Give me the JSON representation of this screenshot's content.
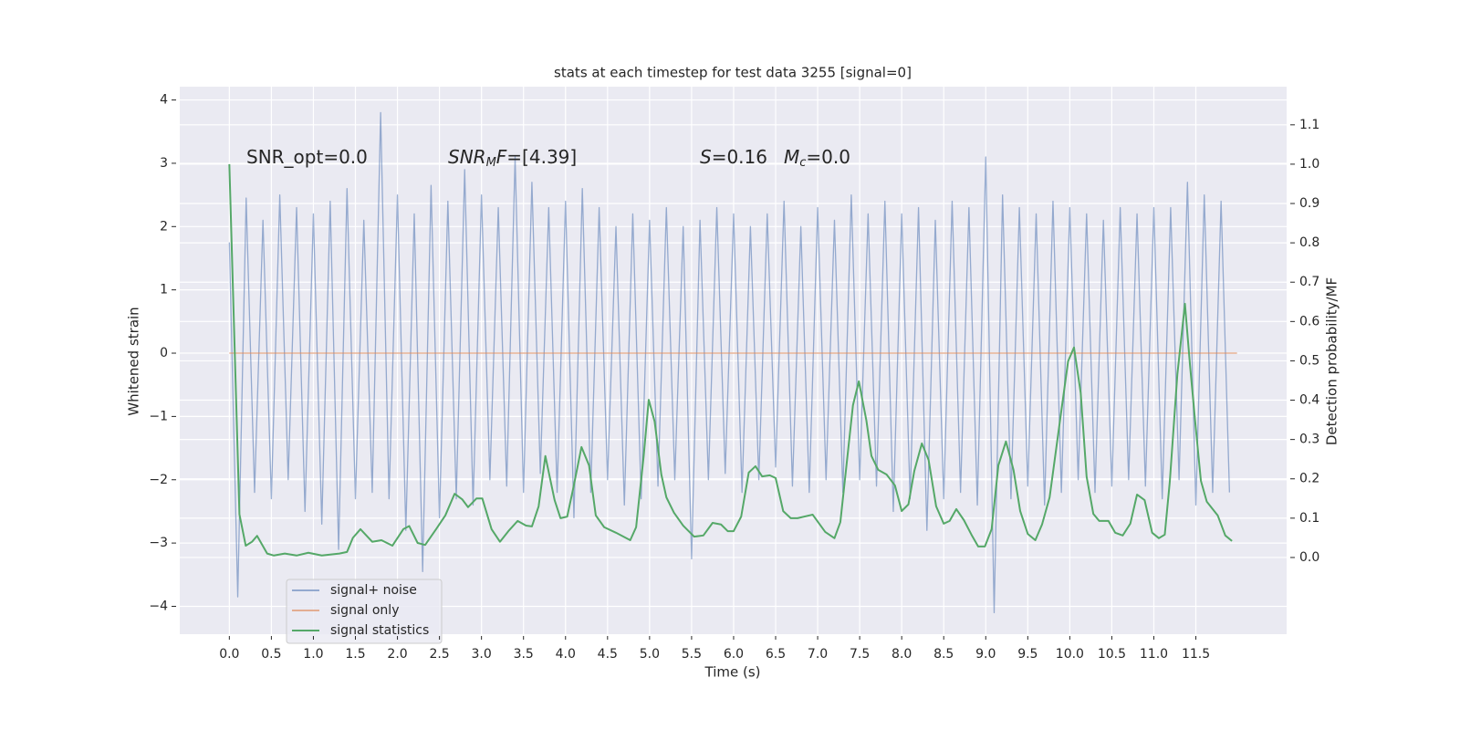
{
  "chart_data": {
    "type": "line",
    "title": "stats at each timestep for test data 3255 [signal=0]",
    "xlabel": "Time (s)",
    "ylabel": "Whitened strain",
    "y2label": "Detection probability/MF",
    "annotations": [
      [
        "SNR_opt=0.0"
      ],
      [
        "SNR",
        "M",
        "F",
        "=[4.39]"
      ],
      [
        "S",
        "=0.16"
      ],
      [
        "M",
        "c",
        "=0.0"
      ]
    ],
    "xlim": [
      -0.59,
      12.58
    ],
    "ylim": [
      -4.44,
      4.21
    ],
    "y2lim": [
      -0.195,
      1.197
    ],
    "xticks": [
      {
        "value": 0,
        "label": "0.0"
      },
      {
        "value": 0.5,
        "label": "0.5"
      },
      {
        "value": 1,
        "label": "1.0"
      },
      {
        "value": 1.5,
        "label": "1.5"
      },
      {
        "value": 2,
        "label": "2.0"
      },
      {
        "value": 2.5,
        "label": "2.5"
      },
      {
        "value": 3,
        "label": "3.0"
      },
      {
        "value": 3.5,
        "label": "3.5"
      },
      {
        "value": 4,
        "label": "4.0"
      },
      {
        "value": 4.5,
        "label": "4.5"
      },
      {
        "value": 5,
        "label": "5.0"
      },
      {
        "value": 5.5,
        "label": "5.5"
      },
      {
        "value": 6,
        "label": "6.0"
      },
      {
        "value": 6.5,
        "label": "6.5"
      },
      {
        "value": 7,
        "label": "7.0"
      },
      {
        "value": 7.5,
        "label": "7.5"
      },
      {
        "value": 8,
        "label": "8.0"
      },
      {
        "value": 8.5,
        "label": "8.5"
      },
      {
        "value": 9,
        "label": "9.0"
      },
      {
        "value": 9.5,
        "label": "9.5"
      },
      {
        "value": 10,
        "label": "10.0"
      },
      {
        "value": 10.5,
        "label": "10.5"
      },
      {
        "value": 11,
        "label": "11.0"
      },
      {
        "value": 11.5,
        "label": "11.5"
      }
    ],
    "yticks": [
      {
        "value": -4,
        "label": "−4"
      },
      {
        "value": -3,
        "label": "−3"
      },
      {
        "value": -2,
        "label": "−2"
      },
      {
        "value": -1,
        "label": "−1"
      },
      0,
      1,
      2,
      3,
      4
    ],
    "y2ticks": [
      {
        "value": 0,
        "label": "0.0"
      },
      {
        "value": 0.1,
        "label": "0.1"
      },
      {
        "value": 0.2,
        "label": "0.2"
      },
      {
        "value": 0.3,
        "label": "0.3"
      },
      {
        "value": 0.4,
        "label": "0.4"
      },
      {
        "value": 0.5,
        "label": "0.5"
      },
      {
        "value": 0.6,
        "label": "0.6"
      },
      {
        "value": 0.7,
        "label": "0.7"
      },
      {
        "value": 0.8,
        "label": "0.8"
      },
      {
        "value": 0.9,
        "label": "0.9"
      },
      {
        "value": 1,
        "label": "1.0"
      },
      {
        "value": 1.1,
        "label": "1.1"
      }
    ],
    "grid": true,
    "legend": "lower left",
    "series": [
      {
        "name": "signal+ noise",
        "color": "#4c72b0",
        "x": [
          0.0,
          0.1,
          0.2,
          0.3,
          0.4,
          0.5,
          0.6,
          0.7,
          0.8,
          0.9,
          1.0,
          1.1,
          1.2,
          1.3,
          1.4,
          1.5,
          1.6,
          1.7,
          1.8,
          1.9,
          2.0,
          2.1,
          2.2,
          2.3,
          2.4,
          2.5,
          2.6,
          2.7,
          2.8,
          2.9,
          3.0,
          3.1,
          3.2,
          3.3,
          3.4,
          3.5,
          3.6,
          3.7,
          3.8,
          3.9,
          4.0,
          4.1,
          4.2,
          4.3,
          4.4,
          4.5,
          4.6,
          4.7,
          4.8,
          4.9,
          5.0,
          5.1,
          5.2,
          5.3,
          5.4,
          5.5,
          5.6,
          5.7,
          5.8,
          5.9,
          6.0,
          6.1,
          6.2,
          6.3,
          6.4,
          6.5,
          6.6,
          6.7,
          6.8,
          6.9,
          7.0,
          7.1,
          7.2,
          7.3,
          7.4,
          7.5,
          7.6,
          7.7,
          7.8,
          7.9,
          8.0,
          8.1,
          8.2,
          8.3,
          8.4,
          8.5,
          8.6,
          8.7,
          8.8,
          8.9,
          9.0,
          9.1,
          9.2,
          9.3,
          9.4,
          9.5,
          9.6,
          9.7,
          9.8,
          9.9,
          10.0,
          10.1,
          10.2,
          10.3,
          10.4,
          10.5,
          10.6,
          10.7,
          10.8,
          10.9,
          11.0,
          11.1,
          11.2,
          11.3,
          11.4,
          11.5,
          11.6,
          11.7,
          11.8,
          11.9
        ],
        "values": [
          1.75,
          -3.85,
          2.45,
          -2.2,
          2.1,
          -2.3,
          2.5,
          -2.0,
          2.3,
          -2.5,
          2.2,
          -2.7,
          2.4,
          -3.1,
          2.6,
          -2.3,
          2.1,
          -2.2,
          3.8,
          -2.3,
          2.5,
          -2.8,
          2.2,
          -3.45,
          2.65,
          -2.6,
          2.4,
          -2.3,
          2.9,
          -2.4,
          2.5,
          -2.0,
          2.3,
          -2.1,
          3.1,
          -2.2,
          2.7,
          -1.9,
          2.3,
          -2.2,
          2.4,
          -2.6,
          2.6,
          -2.2,
          2.3,
          -2.0,
          2.0,
          -2.4,
          2.2,
          -2.3,
          2.1,
          -2.1,
          2.3,
          -2.0,
          2.0,
          -3.25,
          2.1,
          -2.0,
          2.3,
          -1.9,
          2.2,
          -2.2,
          2.0,
          -2.0,
          2.2,
          -1.8,
          2.4,
          -2.1,
          2.0,
          -2.2,
          2.3,
          -2.0,
          2.1,
          -2.2,
          2.5,
          -2.0,
          2.2,
          -2.1,
          2.4,
          -2.5,
          2.2,
          -2.3,
          2.3,
          -2.8,
          2.1,
          -2.3,
          2.4,
          -2.2,
          2.3,
          -2.4,
          3.1,
          -4.1,
          2.5,
          -2.3,
          2.3,
          -2.1,
          2.2,
          -2.4,
          2.4,
          -2.2,
          2.3,
          -2.0,
          2.2,
          -2.2,
          2.1,
          -2.1,
          2.3,
          -2.0,
          2.2,
          -2.1,
          2.3,
          -2.3,
          2.3,
          -2.0,
          2.7,
          -2.4,
          2.5,
          -2.2,
          2.4,
          -2.2
        ]
      },
      {
        "name": "signal only",
        "color": "#dd8452",
        "x": [
          0,
          11.99
        ],
        "values": [
          0,
          0
        ]
      },
      {
        "name": "signal statistics",
        "color": "#55a868",
        "axis": "y2",
        "x": [
          0,
          0.12,
          0.195,
          0.27,
          0.33,
          0.45,
          0.53,
          0.66,
          0.8,
          0.94,
          1.1,
          1.31,
          1.4,
          1.47,
          1.56,
          1.7,
          1.81,
          1.94,
          2.07,
          2.14,
          2.24,
          2.33,
          2.46,
          2.57,
          2.68,
          2.77,
          2.84,
          2.94,
          3.01,
          3.12,
          3.22,
          3.32,
          3.43,
          3.53,
          3.6,
          3.68,
          3.76,
          3.87,
          3.94,
          4.02,
          4.09,
          4.19,
          4.28,
          4.36,
          4.46,
          4.6,
          4.77,
          4.84,
          4.93,
          4.99,
          5.06,
          5.14,
          5.2,
          5.29,
          5.4,
          5.53,
          5.64,
          5.75,
          5.85,
          5.93,
          6.0,
          6.09,
          6.18,
          6.26,
          6.34,
          6.43,
          6.5,
          6.59,
          6.68,
          6.76,
          6.94,
          7.09,
          7.2,
          7.27,
          7.42,
          7.49,
          7.58,
          7.64,
          7.72,
          7.82,
          7.92,
          8.0,
          8.08,
          8.15,
          8.24,
          8.32,
          8.41,
          8.5,
          8.57,
          8.65,
          8.74,
          8.83,
          8.91,
          8.99,
          9.07,
          9.15,
          9.24,
          9.33,
          9.41,
          9.5,
          9.59,
          9.67,
          9.76,
          9.87,
          9.98,
          10.05,
          10.13,
          10.2,
          10.28,
          10.35,
          10.46,
          10.54,
          10.63,
          10.72,
          10.8,
          10.89,
          10.98,
          11.06,
          11.13,
          11.19,
          11.28,
          11.37,
          11.43,
          11.5,
          11.56,
          11.63,
          11.76,
          11.85,
          11.93
        ],
        "values": [
          1.0,
          0.11,
          0.03,
          0.04,
          0.055,
          0.01,
          0.005,
          0.01,
          0.005,
          0.012,
          0.005,
          0.01,
          0.014,
          0.05,
          0.072,
          0.04,
          0.044,
          0.03,
          0.072,
          0.08,
          0.037,
          0.032,
          0.072,
          0.107,
          0.162,
          0.148,
          0.128,
          0.15,
          0.15,
          0.072,
          0.04,
          0.067,
          0.093,
          0.081,
          0.079,
          0.13,
          0.258,
          0.146,
          0.1,
          0.104,
          0.174,
          0.281,
          0.234,
          0.107,
          0.077,
          0.063,
          0.044,
          0.077,
          0.258,
          0.401,
          0.346,
          0.211,
          0.153,
          0.114,
          0.081,
          0.053,
          0.056,
          0.088,
          0.084,
          0.067,
          0.067,
          0.104,
          0.216,
          0.232,
          0.206,
          0.209,
          0.202,
          0.118,
          0.1,
          0.1,
          0.109,
          0.065,
          0.049,
          0.09,
          0.387,
          0.448,
          0.348,
          0.258,
          0.223,
          0.211,
          0.183,
          0.118,
          0.135,
          0.22,
          0.29,
          0.248,
          0.13,
          0.086,
          0.093,
          0.123,
          0.095,
          0.058,
          0.028,
          0.028,
          0.072,
          0.234,
          0.295,
          0.223,
          0.118,
          0.06,
          0.044,
          0.084,
          0.153,
          0.327,
          0.499,
          0.534,
          0.418,
          0.206,
          0.111,
          0.093,
          0.093,
          0.063,
          0.056,
          0.086,
          0.16,
          0.146,
          0.063,
          0.049,
          0.058,
          0.193,
          0.466,
          0.645,
          0.49,
          0.327,
          0.195,
          0.142,
          0.107,
          0.056,
          0.042
        ]
      }
    ]
  }
}
